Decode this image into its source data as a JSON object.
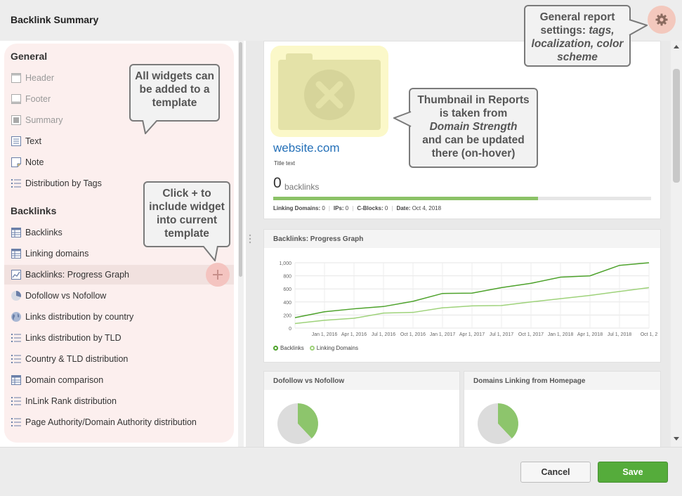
{
  "window": {
    "title": "Backlink Summary"
  },
  "sidebar": {
    "general_heading": "General",
    "general_items": [
      {
        "label": "Header",
        "icon": "header-icon",
        "disabled": true
      },
      {
        "label": "Footer",
        "icon": "footer-icon",
        "disabled": true
      },
      {
        "label": "Summary",
        "icon": "summary-icon",
        "disabled": true
      },
      {
        "label": "Text",
        "icon": "text-icon",
        "disabled": false
      },
      {
        "label": "Note",
        "icon": "note-icon",
        "disabled": false
      },
      {
        "label": "Distribution by Tags",
        "icon": "list-icon",
        "disabled": false
      }
    ],
    "backlinks_heading": "Backlinks",
    "backlinks_items": [
      {
        "label": "Backlinks",
        "icon": "table-icon"
      },
      {
        "label": "Linking domains",
        "icon": "table-icon"
      },
      {
        "label": "Backlinks: Progress Graph",
        "icon": "line-chart-icon",
        "active": true
      },
      {
        "label": "Dofollow vs Nofollow",
        "icon": "pie-chart-icon"
      },
      {
        "label": "Links distribution by country",
        "icon": "globe-icon"
      },
      {
        "label": "Links distribution by TLD",
        "icon": "list-icon"
      },
      {
        "label": "Country & TLD distribution",
        "icon": "list-icon"
      },
      {
        "label": "Domain comparison",
        "icon": "table-icon"
      },
      {
        "label": "InLink Rank distribution",
        "icon": "list-icon"
      },
      {
        "label": "Page Authority/Domain Authority distribution",
        "icon": "list-icon"
      }
    ]
  },
  "summary": {
    "site": "website.com",
    "title_text": "Title text",
    "backlinks_count": "0",
    "backlinks_label": "backlinks",
    "progress": 0.7,
    "stats": {
      "linking_domains_label": "Linking Domains:",
      "linking_domains": "0",
      "ips_label": "IPs:",
      "ips": "0",
      "cblocks_label": "C-Blocks:",
      "cblocks": "0",
      "date_label": "Date:",
      "date": "Oct 4, 2018"
    }
  },
  "progress_graph": {
    "heading": "Backlinks: Progress Graph",
    "chart_data": {
      "type": "line",
      "x": [
        "",
        "Jan 1, 2016",
        "Apr 1, 2016",
        "Jul 1, 2016",
        "Oct 1, 2016",
        "Jan 1, 2017",
        "Apr 1, 2017",
        "Jul 1, 2017",
        "Oct 1, 2017",
        "Jan 1, 2018",
        "Apr 1, 2018",
        "Jul 1, 2018",
        "Oct 1, 2"
      ],
      "series": [
        {
          "name": "Backlinks",
          "color": "#4da22b",
          "values": [
            160,
            250,
            295,
            330,
            410,
            530,
            535,
            620,
            685,
            780,
            800,
            960,
            1000
          ]
        },
        {
          "name": "Linking Domains",
          "color": "#9ed27a",
          "values": [
            70,
            120,
            150,
            230,
            240,
            310,
            340,
            345,
            400,
            450,
            500,
            560,
            620
          ]
        }
      ],
      "yticks": [
        "0",
        "200",
        "400",
        "600",
        "800",
        "1,000"
      ],
      "ylim": [
        0,
        1000
      ],
      "grid": true,
      "legend": "bottom-left"
    }
  },
  "dofollow": {
    "heading": "Dofollow vs Nofollow",
    "chart_data": {
      "type": "pie",
      "values": [
        0.38,
        0.62
      ],
      "colors": [
        "#8dc56c",
        "#dcdcdc"
      ]
    }
  },
  "domains_home": {
    "heading": "Domains Linking from Homepage",
    "chart_data": {
      "type": "pie",
      "values": [
        0.38,
        0.62
      ],
      "colors": [
        "#8dc56c",
        "#dcdcdc"
      ]
    }
  },
  "callouts": {
    "widgets": "All widgets can be added to a template",
    "click_plus": "Click + to include widget into current template",
    "thumbnail_prefix": "Thumbnail in Reports is taken from",
    "thumbnail_em": "Domain Strength",
    "thumbnail_suffix": "and can be updated there (on-hover)",
    "settings_prefix": "General report settings:",
    "settings_em": "tags, localization, color scheme"
  },
  "footer": {
    "cancel": "Cancel",
    "save": "Save"
  },
  "colors": {
    "accent_green": "#55ac3b",
    "link_blue": "#2470b8",
    "panel_pink": "#fcefee"
  }
}
